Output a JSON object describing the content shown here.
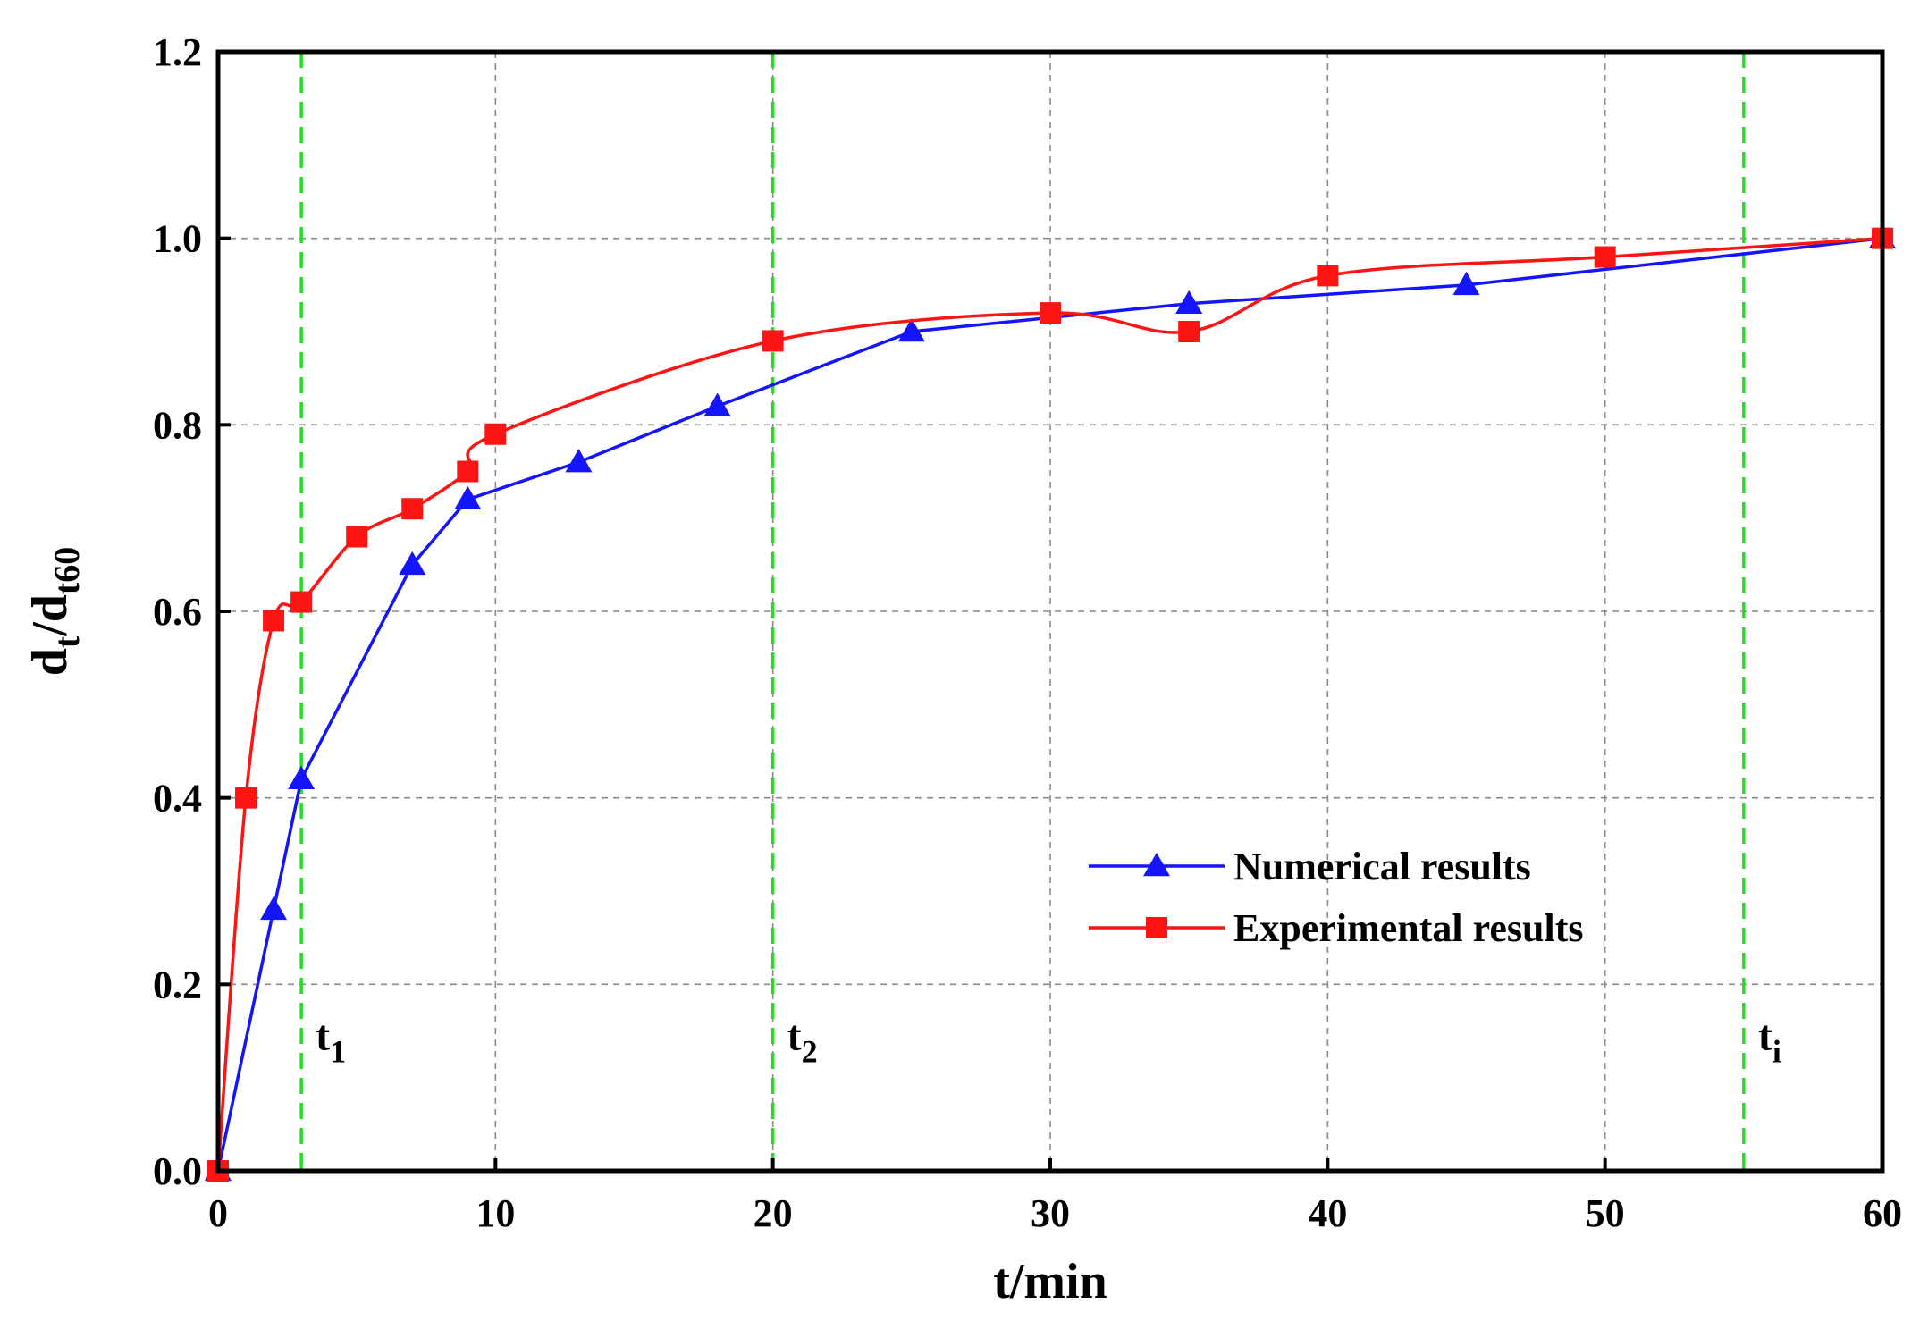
{
  "chart_data": {
    "type": "line",
    "xlabel": "t/min",
    "ylabel": {
      "main": "d",
      "sub1": "t",
      "mid": "/d",
      "sub2": "t60"
    },
    "xlim": [
      0,
      60
    ],
    "ylim": [
      0,
      1.2
    ],
    "xticks": [
      0,
      10,
      20,
      30,
      40,
      50,
      60
    ],
    "yticks": [
      0.0,
      0.2,
      0.4,
      0.6,
      0.8,
      1.0,
      1.2
    ],
    "xtick_labels": [
      "0",
      "10",
      "20",
      "30",
      "40",
      "50",
      "60"
    ],
    "ytick_labels": [
      "0.0",
      "0.2",
      "0.4",
      "0.6",
      "0.8",
      "1.0",
      "1.2"
    ],
    "grid": true,
    "legend_position": "center-right",
    "series": [
      {
        "name": "Numerical results",
        "color": "#1414ff",
        "marker": "triangle",
        "smooth": false,
        "x": [
          0,
          2,
          3,
          7,
          9,
          13,
          18,
          25,
          35,
          45,
          60
        ],
        "y": [
          0.0,
          0.28,
          0.42,
          0.65,
          0.72,
          0.76,
          0.82,
          0.9,
          0.93,
          0.95,
          1.0
        ]
      },
      {
        "name": "Experimental results",
        "color": "#ff1414",
        "marker": "square",
        "smooth": true,
        "x": [
          0,
          1,
          2,
          3,
          5,
          7,
          9,
          10,
          20,
          30,
          35,
          40,
          50,
          60
        ],
        "y": [
          0.0,
          0.4,
          0.59,
          0.61,
          0.68,
          0.71,
          0.75,
          0.79,
          0.89,
          0.92,
          0.9,
          0.96,
          0.98,
          1.0
        ]
      }
    ],
    "vertical_markers": [
      {
        "x": 3,
        "label": "t",
        "sub": "1"
      },
      {
        "x": 20,
        "label": "t",
        "sub": "2"
      },
      {
        "x": 55,
        "label": "t",
        "sub": "i"
      }
    ],
    "vertical_marker_color": "#22dd22"
  }
}
